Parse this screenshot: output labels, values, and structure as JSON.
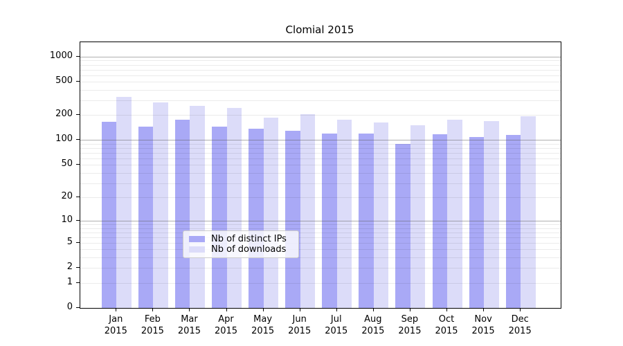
{
  "chart_data": {
    "type": "bar",
    "title": "Clomial 2015",
    "xlabel": "",
    "ylabel": "",
    "y_scale": "log1p",
    "ylim": [
      0,
      1490
    ],
    "y_ticks": [
      0,
      1,
      2,
      5,
      10,
      20,
      50,
      100,
      200,
      500,
      1000
    ],
    "grid": true,
    "legend_position": "lower center",
    "year": "2015",
    "months": [
      "Jan",
      "Feb",
      "Mar",
      "Apr",
      "May",
      "Jun",
      "Jul",
      "Aug",
      "Sep",
      "Oct",
      "Nov",
      "Dec"
    ],
    "series": [
      {
        "name": "Nb of distinct IPs",
        "color": "#a9a9f6",
        "values": [
          167,
          144,
          175,
          145,
          137,
          130,
          121,
          119,
          90,
          117,
          108,
          116
        ]
      },
      {
        "name": "Nb of downloads",
        "color": "#dcdcf9",
        "values": [
          330,
          285,
          257,
          244,
          187,
          205,
          177,
          164,
          150,
          177,
          168,
          194
        ]
      }
    ]
  }
}
